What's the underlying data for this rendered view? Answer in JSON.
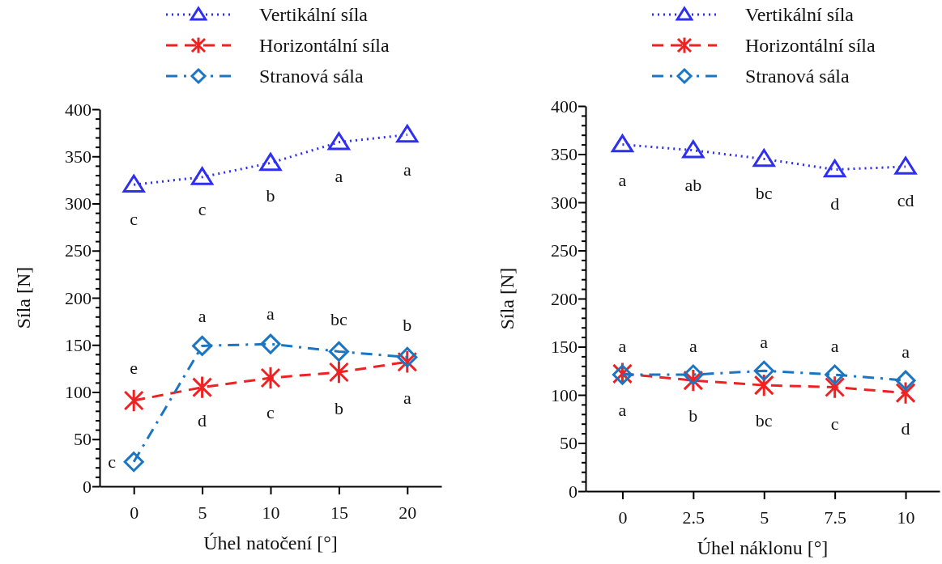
{
  "chart_data": [
    {
      "type": "line",
      "xlabel": "Úhel natočení [°]",
      "ylabel": "Síla [N]",
      "x": [
        0,
        5,
        10,
        15,
        20
      ],
      "xlim": [
        -2.5,
        22.5
      ],
      "xticks": [
        0,
        5,
        10,
        15,
        20
      ],
      "ylim": [
        0,
        400
      ],
      "yticks": [
        0,
        {
          "value": 10,
          "label": null
        },
        {
          "value": 20,
          "label": null
        },
        {
          "value": 30,
          "label": null
        },
        {
          "value": 40,
          "label": null
        },
        50,
        {
          "value": 60,
          "label": null
        },
        {
          "value": 70,
          "label": null
        },
        {
          "value": 80,
          "label": null
        },
        {
          "value": 90,
          "label": null
        },
        100,
        {
          "value": 110,
          "label": null
        },
        {
          "value": 120,
          "label": null
        },
        {
          "value": 130,
          "label": null
        },
        {
          "value": 140,
          "label": null
        },
        150,
        {
          "value": 160,
          "label": null
        },
        {
          "value": 170,
          "label": null
        },
        {
          "value": 180,
          "label": null
        },
        {
          "value": 190,
          "label": null
        },
        200,
        {
          "value": 210,
          "label": null
        },
        {
          "value": 220,
          "label": null
        },
        {
          "value": 230,
          "label": null
        },
        {
          "value": 240,
          "label": null
        },
        250,
        {
          "value": 260,
          "label": null
        },
        {
          "value": 270,
          "label": null
        },
        {
          "value": 280,
          "label": null
        },
        {
          "value": 290,
          "label": null
        },
        300,
        {
          "value": 310,
          "label": null
        },
        {
          "value": 320,
          "label": null
        },
        {
          "value": 330,
          "label": null
        },
        {
          "value": 340,
          "label": null
        },
        350,
        {
          "value": 360,
          "label": null
        },
        {
          "value": 370,
          "label": null
        },
        {
          "value": 380,
          "label": null
        },
        {
          "value": 390,
          "label": null
        },
        400
      ],
      "legend": "top",
      "series": [
        {
          "name": "Vertikální síla",
          "color": "#2f2ff0",
          "marker": "triangle",
          "line_style": "dotted",
          "values": [
            320,
            328,
            343,
            365,
            373
          ],
          "value_labels": [
            "c",
            "c",
            "b",
            "a",
            "a"
          ]
        },
        {
          "name": "Horizontální síla",
          "color": "#ee2222",
          "marker": "cross",
          "line_style": "dashed",
          "values": [
            91,
            105,
            115,
            121,
            132
          ],
          "value_labels": [
            "e",
            "d",
            "c",
            "b",
            "a"
          ]
        },
        {
          "name": "Stranová sála",
          "color": "#1a75c2",
          "marker": "diamond",
          "line_style": "dashdot",
          "values": [
            26,
            149,
            151,
            143,
            137
          ],
          "value_labels": [
            "c",
            "a",
            "a",
            "bc",
            "b"
          ]
        }
      ]
    },
    {
      "type": "line",
      "xlabel": "Úhel náklonu [°]",
      "ylabel": "Síla [N]",
      "x": [
        0,
        2.5,
        5,
        7.5,
        10
      ],
      "xlim": [
        -1.3,
        11.2
      ],
      "xticks": [
        0,
        2.5,
        5,
        7.5,
        10
      ],
      "ylim": [
        0,
        400
      ],
      "yticks": [
        0,
        {
          "value": 10,
          "label": null
        },
        {
          "value": 20,
          "label": null
        },
        {
          "value": 30,
          "label": null
        },
        {
          "value": 40,
          "label": null
        },
        50,
        {
          "value": 60,
          "label": null
        },
        {
          "value": 70,
          "label": null
        },
        {
          "value": 80,
          "label": null
        },
        {
          "value": 90,
          "label": null
        },
        100,
        {
          "value": 110,
          "label": null
        },
        {
          "value": 120,
          "label": null
        },
        {
          "value": 130,
          "label": null
        },
        {
          "value": 140,
          "label": null
        },
        150,
        {
          "value": 160,
          "label": null
        },
        {
          "value": 170,
          "label": null
        },
        {
          "value": 180,
          "label": null
        },
        {
          "value": 190,
          "label": null
        },
        200,
        {
          "value": 210,
          "label": null
        },
        {
          "value": 220,
          "label": null
        },
        {
          "value": 230,
          "label": null
        },
        {
          "value": 240,
          "label": null
        },
        250,
        {
          "value": 260,
          "label": null
        },
        {
          "value": 270,
          "label": null
        },
        {
          "value": 280,
          "label": null
        },
        {
          "value": 290,
          "label": null
        },
        300,
        {
          "value": 310,
          "label": null
        },
        {
          "value": 320,
          "label": null
        },
        {
          "value": 330,
          "label": null
        },
        {
          "value": 340,
          "label": null
        },
        350,
        {
          "value": 360,
          "label": null
        },
        {
          "value": 370,
          "label": null
        },
        {
          "value": 380,
          "label": null
        },
        {
          "value": 390,
          "label": null
        },
        400
      ],
      "legend": "top",
      "series": [
        {
          "name": "Vertikální síla",
          "color": "#2f2ff0",
          "marker": "triangle",
          "line_style": "dotted",
          "values": [
            360,
            354,
            345,
            334,
            337
          ],
          "value_labels": [
            "a",
            "ab",
            "bc",
            "d",
            "cd"
          ]
        },
        {
          "name": "Horizontální síla",
          "color": "#ee2222",
          "marker": "cross",
          "line_style": "dashed",
          "values": [
            122,
            115,
            110,
            108,
            102
          ],
          "value_labels": [
            "a",
            "b",
            "bc",
            "c",
            "d"
          ]
        },
        {
          "name": "Stranová sála",
          "color": "#1a75c2",
          "marker": "diamond",
          "line_style": "dashdot",
          "values": [
            121,
            121,
            125,
            121,
            115
          ],
          "value_labels": [
            "a",
            "a",
            "a",
            "a",
            "a"
          ]
        }
      ]
    }
  ]
}
